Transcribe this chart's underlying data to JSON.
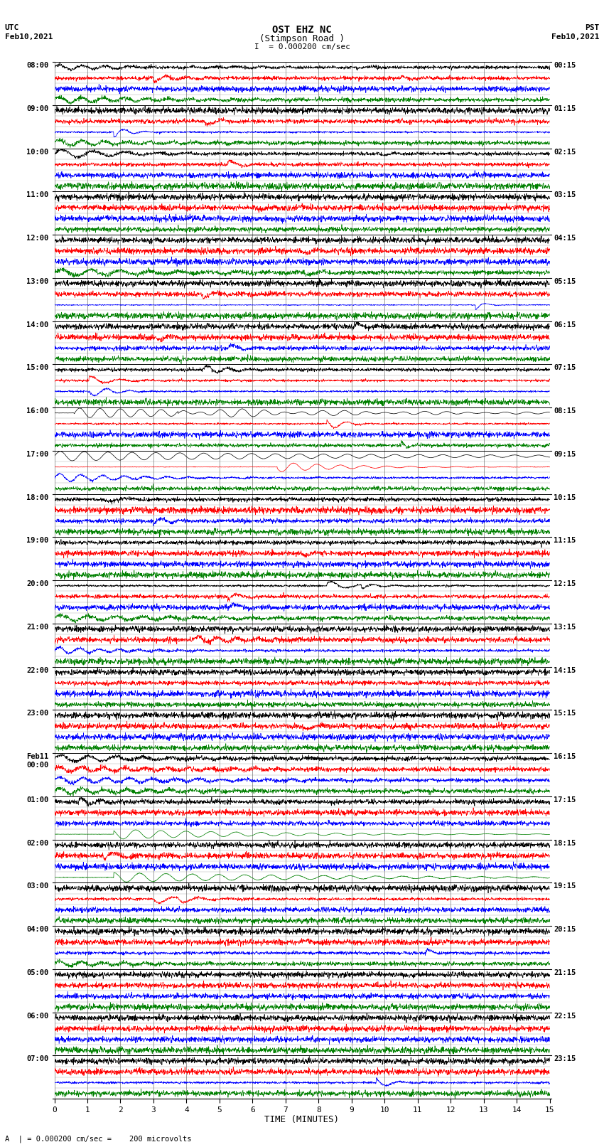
{
  "title_line1": "OST EHZ NC",
  "title_line2": "(Stimpson Road )",
  "title_line3": "I  = 0.000200 cm/sec",
  "left_header_line1": "UTC",
  "left_header_line2": "Feb10,2021",
  "right_header_line1": "PST",
  "right_header_line2": "Feb10,2021",
  "xlabel": "TIME (MINUTES)",
  "footer": "A  | = 0.000200 cm/sec =    200 microvolts",
  "utc_labels": [
    "08:00",
    "09:00",
    "10:00",
    "11:00",
    "12:00",
    "13:00",
    "14:00",
    "15:00",
    "16:00",
    "17:00",
    "18:00",
    "19:00",
    "20:00",
    "21:00",
    "22:00",
    "23:00",
    "Feb11\n00:00",
    "01:00",
    "02:00",
    "03:00",
    "04:00",
    "05:00",
    "06:00",
    "07:00"
  ],
  "pst_labels": [
    "00:15",
    "01:15",
    "02:15",
    "03:15",
    "04:15",
    "05:15",
    "06:15",
    "07:15",
    "08:15",
    "09:15",
    "10:15",
    "11:15",
    "12:15",
    "13:15",
    "14:15",
    "15:15",
    "16:15",
    "17:15",
    "18:15",
    "19:15",
    "20:15",
    "21:15",
    "22:15",
    "23:15"
  ],
  "n_time_rows": 24,
  "minutes": 15,
  "colors": [
    "black",
    "red",
    "blue",
    "green"
  ],
  "bg_color": "white",
  "grid_color": "#777777",
  "fig_width": 8.5,
  "fig_height": 16.13,
  "n_pts": 2000
}
